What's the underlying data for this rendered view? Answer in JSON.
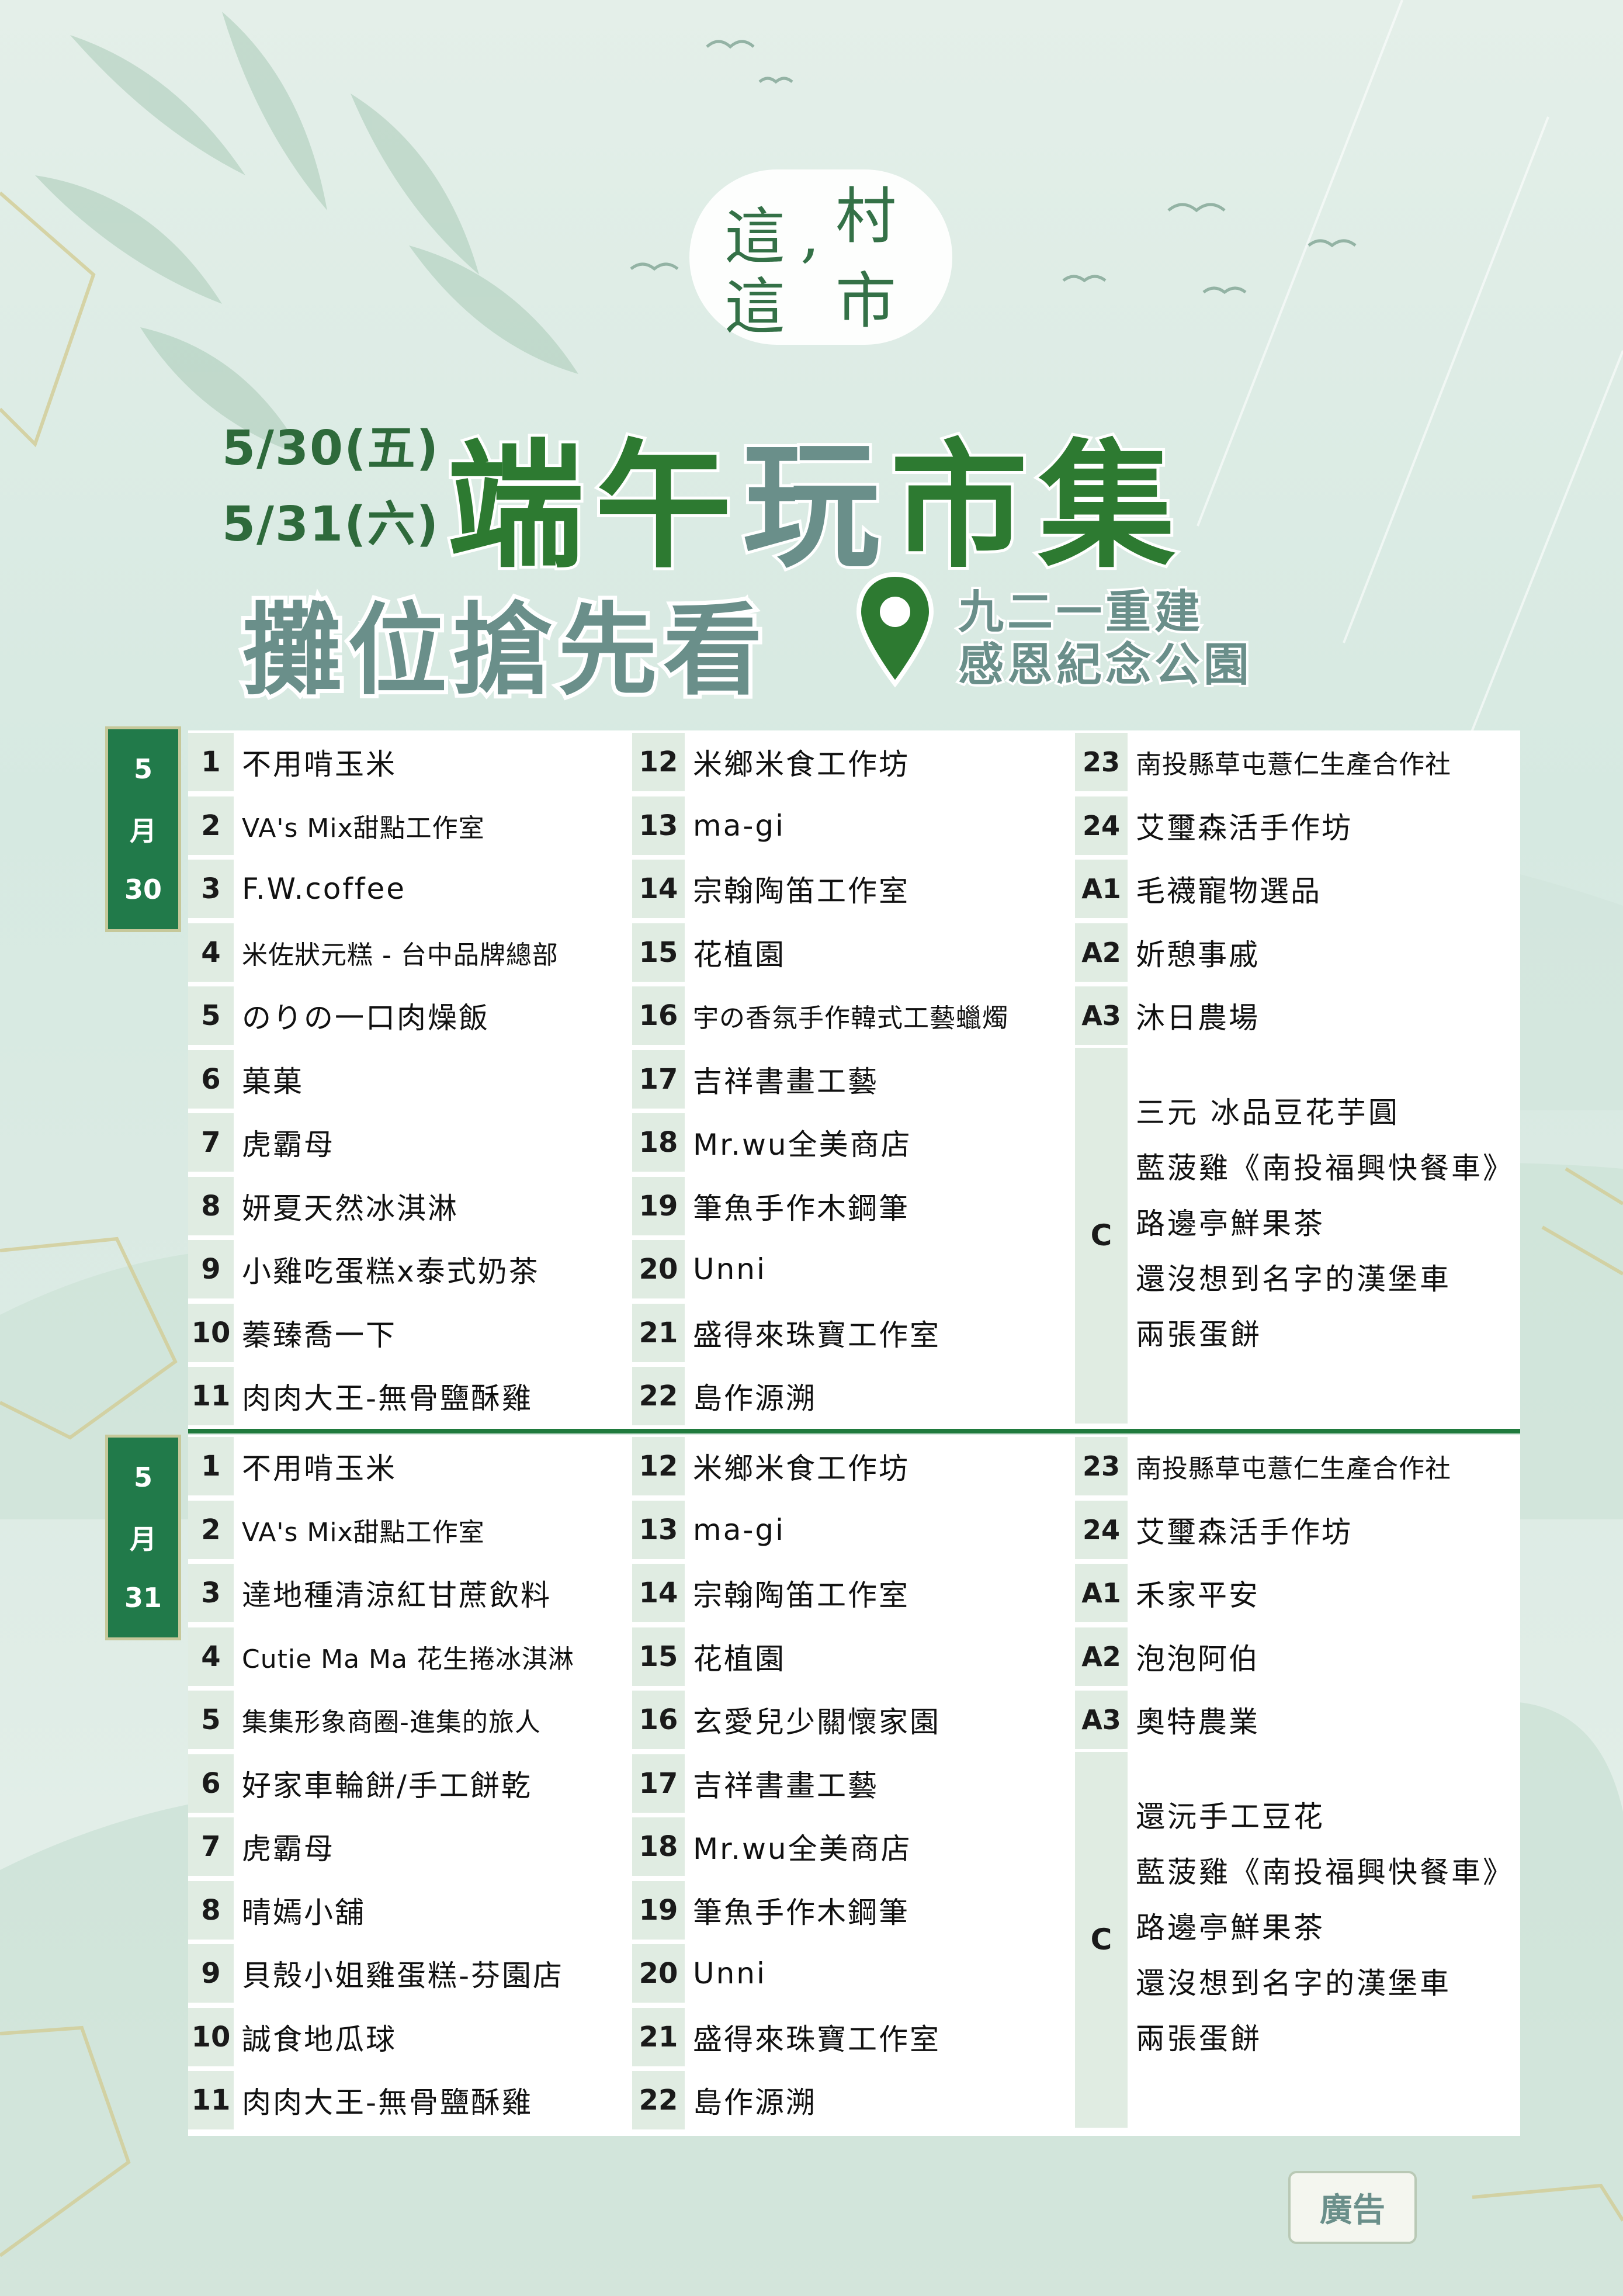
{
  "logo": {
    "c1": "這",
    "c2": "村",
    "c3": "這",
    "c4": "市",
    "comma": ","
  },
  "header": {
    "date1": "5/30(五)",
    "date2": "5/31(六)",
    "title_a": "端午",
    "title_b": "玩",
    "title_c": "市集",
    "subtitle": "攤位搶先看",
    "venue_line1": "九二一重建",
    "venue_line2": "感恩紀念公園"
  },
  "day1": {
    "tab": {
      "a": "5",
      "b": "月",
      "c": "30"
    },
    "col1": [
      {
        "n": "1",
        "name": "不用啃玉米"
      },
      {
        "n": "2",
        "name": "VA's Mix甜點工作室"
      },
      {
        "n": "3",
        "name": "F.W.coffee"
      },
      {
        "n": "4",
        "name": "米佐狀元糕 - 台中品牌總部"
      },
      {
        "n": "5",
        "name": "のりの一口肉燥飯"
      },
      {
        "n": "6",
        "name": "菓菓"
      },
      {
        "n": "7",
        "name": "虎霸母"
      },
      {
        "n": "8",
        "name": "妍夏天然冰淇淋"
      },
      {
        "n": "9",
        "name": "小雞吃蛋糕x泰式奶茶"
      },
      {
        "n": "10",
        "name": "蓁臻喬一下"
      },
      {
        "n": "11",
        "name": "肉肉大王-無骨鹽酥雞"
      }
    ],
    "col2": [
      {
        "n": "12",
        "name": "米鄉米食工作坊"
      },
      {
        "n": "13",
        "name": "ma-gi"
      },
      {
        "n": "14",
        "name": "宗翰陶笛工作室"
      },
      {
        "n": "15",
        "name": "花植園"
      },
      {
        "n": "16",
        "name": "宇の香氛手作韓式工藝蠟燭"
      },
      {
        "n": "17",
        "name": "吉祥書畫工藝"
      },
      {
        "n": "18",
        "name": "Mr.wu全美商店"
      },
      {
        "n": "19",
        "name": "筆魚手作木鋼筆"
      },
      {
        "n": "20",
        "name": "Unni"
      },
      {
        "n": "21",
        "name": "盛得來珠寶工作室"
      },
      {
        "n": "22",
        "name": "島作源溯"
      }
    ],
    "col3": [
      {
        "n": "23",
        "name": "南投縣草屯薏仁生產合作社"
      },
      {
        "n": "24",
        "name": "艾璽森活手作坊"
      },
      {
        "n": "A1",
        "name": "毛襪寵物選品"
      },
      {
        "n": "A2",
        "name": "妡憩事戚"
      },
      {
        "n": "A3",
        "name": "沐日農場"
      }
    ],
    "c_label": "C",
    "c_items": [
      "三元 冰品豆花芋圓",
      "藍菠雞《南投福興快餐車》",
      "路邊亭鮮果茶",
      "還沒想到名字的漢堡車",
      "兩張蛋餅"
    ]
  },
  "day2": {
    "tab": {
      "a": "5",
      "b": "月",
      "c": "31"
    },
    "col1": [
      {
        "n": "1",
        "name": "不用啃玉米"
      },
      {
        "n": "2",
        "name": "VA's Mix甜點工作室"
      },
      {
        "n": "3",
        "name": "達地種清涼紅甘蔗飲料"
      },
      {
        "n": "4",
        "name": "Cutie Ma Ma 花生捲冰淇淋"
      },
      {
        "n": "5",
        "name": "集集形象商圈-進集的旅人"
      },
      {
        "n": "6",
        "name": "好家車輪餅/手工餅乾"
      },
      {
        "n": "7",
        "name": "虎霸母"
      },
      {
        "n": "8",
        "name": "晴嫣小舖"
      },
      {
        "n": "9",
        "name": "貝殼小姐雞蛋糕-芬園店"
      },
      {
        "n": "10",
        "name": "誠食地瓜球"
      },
      {
        "n": "11",
        "name": "肉肉大王-無骨鹽酥雞"
      }
    ],
    "col2": [
      {
        "n": "12",
        "name": "米鄉米食工作坊"
      },
      {
        "n": "13",
        "name": "ma-gi"
      },
      {
        "n": "14",
        "name": "宗翰陶笛工作室"
      },
      {
        "n": "15",
        "name": "花植園"
      },
      {
        "n": "16",
        "name": "玄愛兒少關懷家園"
      },
      {
        "n": "17",
        "name": "吉祥書畫工藝"
      },
      {
        "n": "18",
        "name": "Mr.wu全美商店"
      },
      {
        "n": "19",
        "name": "筆魚手作木鋼筆"
      },
      {
        "n": "20",
        "name": "Unni"
      },
      {
        "n": "21",
        "name": "盛得來珠寶工作室"
      },
      {
        "n": "22",
        "name": "島作源溯"
      }
    ],
    "col3": [
      {
        "n": "23",
        "name": "南投縣草屯薏仁生產合作社"
      },
      {
        "n": "24",
        "name": "艾璽森活手作坊"
      },
      {
        "n": "A1",
        "name": "禾家平安"
      },
      {
        "n": "A2",
        "name": "泡泡阿伯"
      },
      {
        "n": "A3",
        "name": "奧特農業"
      }
    ],
    "c_label": "C",
    "c_items": [
      "還沅手工豆花",
      "藍菠雞《南投福興快餐車》",
      "路邊亭鮮果茶",
      "還沒想到名字的漢堡車",
      "兩張蛋餅"
    ]
  },
  "ad": "廣告",
  "colors": {
    "dark_green": "#2d7a31",
    "teal": "#6a8f8a",
    "tab_green": "#217a4a",
    "cell_bg": "#e0ece2"
  }
}
